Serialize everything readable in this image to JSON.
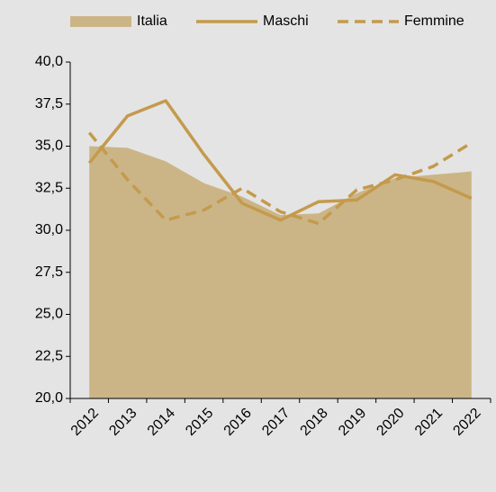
{
  "chart_data": {
    "type": "line",
    "categories": [
      "2012",
      "2013",
      "2014",
      "2015",
      "2016",
      "2017",
      "2018",
      "2019",
      "2020",
      "2021",
      "2022"
    ],
    "series": [
      {
        "name": "Italia",
        "type": "area",
        "color": "#cbb587",
        "values": [
          35.0,
          34.9,
          34.1,
          32.8,
          32.0,
          30.9,
          31.0,
          32.2,
          33.1,
          33.3,
          33.5
        ]
      },
      {
        "name": "Maschi",
        "type": "line",
        "color": "#c49a4c",
        "values": [
          34.0,
          36.8,
          37.7,
          34.5,
          31.6,
          30.6,
          31.7,
          31.8,
          33.3,
          32.9,
          31.9
        ]
      },
      {
        "name": "Femmine",
        "type": "line",
        "dashed": true,
        "color": "#c49a4c",
        "values": [
          35.8,
          33.0,
          30.6,
          31.2,
          32.5,
          31.1,
          30.4,
          32.4,
          33.0,
          33.8,
          35.2
        ]
      }
    ],
    "ylim": [
      20,
      40
    ],
    "yticks": [
      {
        "value": 20,
        "label": "20,0"
      },
      {
        "value": 22.5,
        "label": "22,5"
      },
      {
        "value": 25,
        "label": "25,0"
      },
      {
        "value": 27.5,
        "label": "27,5"
      },
      {
        "value": 30,
        "label": "30,0"
      },
      {
        "value": 32.5,
        "label": "32,5"
      },
      {
        "value": 35,
        "label": "35,0"
      },
      {
        "value": 37.5,
        "label": "37,5"
      },
      {
        "value": 40,
        "label": "40,0"
      }
    ],
    "legend": "top"
  }
}
